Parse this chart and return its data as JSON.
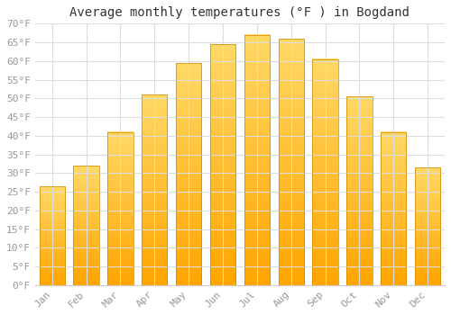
{
  "title": "Average monthly temperatures (°F ) in Bogdand",
  "months": [
    "Jan",
    "Feb",
    "Mar",
    "Apr",
    "May",
    "Jun",
    "Jul",
    "Aug",
    "Sep",
    "Oct",
    "Nov",
    "Dec"
  ],
  "values": [
    26.5,
    32,
    41,
    51,
    59.5,
    64.5,
    67,
    66,
    60.5,
    50.5,
    41,
    31.5
  ],
  "bar_color_bottom": "#FFA500",
  "bar_color_top": "#FFD966",
  "bar_edge_color": "#CC8800",
  "background_color": "#ffffff",
  "grid_color": "#dddddd",
  "ylim": [
    0,
    70
  ],
  "yticks": [
    0,
    5,
    10,
    15,
    20,
    25,
    30,
    35,
    40,
    45,
    50,
    55,
    60,
    65,
    70
  ],
  "ytick_labels": [
    "0°F",
    "5°F",
    "10°F",
    "15°F",
    "20°F",
    "25°F",
    "30°F",
    "35°F",
    "40°F",
    "45°F",
    "50°F",
    "55°F",
    "60°F",
    "65°F",
    "70°F"
  ],
  "title_fontsize": 10,
  "tick_fontsize": 8,
  "tick_color": "#999999",
  "font_family": "monospace",
  "bar_width": 0.75
}
